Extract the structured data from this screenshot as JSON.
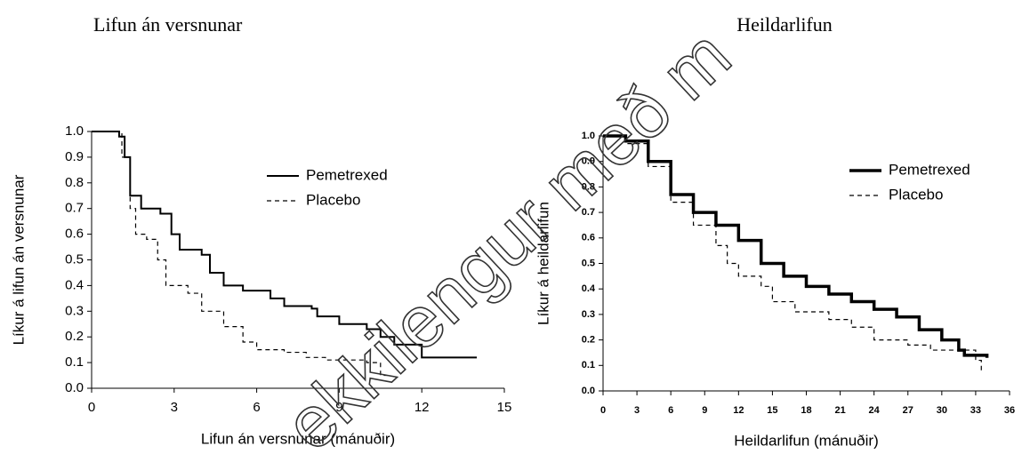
{
  "charts": [
    {
      "chart_data": {
        "type": "line",
        "step": true,
        "title": "Lifun án versnunar",
        "xlabel": "Lifun án versnunar (mánuðir)",
        "ylabel": "Líkur á lifun án versnunar",
        "xlim": [
          0,
          15
        ],
        "xticks": [
          0,
          3,
          6,
          9,
          12,
          15
        ],
        "ylim": [
          0,
          1
        ],
        "yticks": [
          {
            "value": 0,
            "label": "0.0"
          },
          0.1,
          0.2,
          0.3,
          0.4,
          0.5,
          0.6,
          0.7,
          0.8,
          0.9,
          {
            "value": 1,
            "label": "1.0"
          }
        ],
        "legend": "upper right",
        "series": [
          {
            "name": "Pemetrexed",
            "color": "#000000",
            "dash": "solid",
            "width": 2,
            "x": [
              0,
              0.8,
              1,
              1.2,
              1.4,
              1.8,
              2.5,
              2.9,
              3.2,
              4,
              4.3,
              4.8,
              5.5,
              6.5,
              7,
              8,
              8.2,
              9,
              10,
              10.5,
              11,
              12,
              14
            ],
            "values": [
              1,
              1,
              0.98,
              0.9,
              0.75,
              0.7,
              0.68,
              0.6,
              0.54,
              0.52,
              0.45,
              0.4,
              0.38,
              0.35,
              0.32,
              0.31,
              0.28,
              0.25,
              0.23,
              0.2,
              0.17,
              0.12,
              0.12
            ]
          },
          {
            "name": "Placebo",
            "color": "#000000",
            "dash": "dashed",
            "width": 1.2,
            "x": [
              0,
              0.8,
              1.1,
              1.4,
              1.6,
              2,
              2.4,
              2.7,
              3.5,
              4,
              4.8,
              5.5,
              6,
              7,
              7.8,
              8.5,
              10,
              10.5,
              10.8
            ],
            "values": [
              1,
              1,
              0.9,
              0.7,
              0.6,
              0.58,
              0.5,
              0.4,
              0.37,
              0.3,
              0.24,
              0.18,
              0.15,
              0.14,
              0.12,
              0.11,
              0.1,
              0.05,
              0.04
            ]
          }
        ]
      }
    },
    {
      "chart_data": {
        "type": "line",
        "step": true,
        "title": "Heildarlifun",
        "xlabel": "Heildarlifun (mánuðir)",
        "ylabel": "Líkur á heildarlifun",
        "xlim": [
          0,
          36
        ],
        "xticks": [
          0,
          3,
          6,
          9,
          12,
          15,
          18,
          21,
          24,
          27,
          30,
          33,
          36
        ],
        "ylim": [
          0,
          1
        ],
        "yticks": [
          {
            "value": 0,
            "label": "0.0"
          },
          0.1,
          0.2,
          0.3,
          0.4,
          0.5,
          0.6,
          0.7,
          0.8,
          0.9,
          {
            "value": 1,
            "label": "1.0"
          }
        ],
        "legend": "upper right",
        "series": [
          {
            "name": "Pemetrexed",
            "color": "#000000",
            "dash": "solid",
            "width": 3.5,
            "x": [
              0,
              2,
              4,
              6,
              8,
              10,
              12,
              14,
              16,
              18,
              20,
              22,
              24,
              26,
              28,
              30,
              31.5,
              32,
              34
            ],
            "values": [
              1,
              0.98,
              0.9,
              0.77,
              0.7,
              0.65,
              0.59,
              0.5,
              0.45,
              0.41,
              0.38,
              0.35,
              0.32,
              0.29,
              0.24,
              0.2,
              0.16,
              0.14,
              0.13
            ]
          },
          {
            "name": "Placebo",
            "color": "#000000",
            "dash": "dashed",
            "width": 1.2,
            "x": [
              0,
              2,
              4,
              6,
              8,
              10,
              11,
              12,
              14,
              15,
              17,
              20,
              22,
              24,
              27,
              29,
              33,
              33.5
            ],
            "values": [
              1,
              0.97,
              0.88,
              0.74,
              0.65,
              0.57,
              0.5,
              0.45,
              0.41,
              0.35,
              0.31,
              0.28,
              0.25,
              0.2,
              0.18,
              0.16,
              0.12,
              0.08
            ]
          }
        ]
      }
    }
  ],
  "watermark": "ekkilengur með m"
}
